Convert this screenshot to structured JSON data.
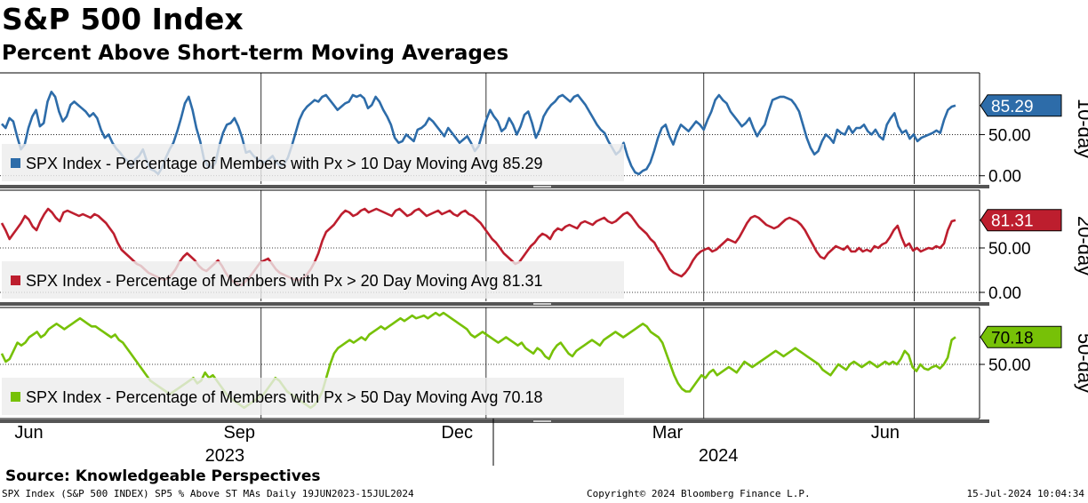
{
  "header": {
    "title": "S&P 500 Index",
    "subtitle": "Percent Above Short-term Moving Averages"
  },
  "source": "Source: Knowledgeable Perspectives",
  "footer": {
    "left": "SPX Index (S&P 500 INDEX) SP5 % Above ST MAs  Daily 19JUN2023-15JUL2024",
    "center": "Copyright© 2024 Bloomberg Finance L.P.",
    "right": "15-Jul-2024 10:04:34"
  },
  "chart_data": {
    "type": "line",
    "x_axis": {
      "months": [
        {
          "label": "Jun",
          "position": 0.3
        },
        {
          "label": "Sep",
          "position": 3.2
        },
        {
          "label": "Dec",
          "position": 6.2
        },
        {
          "label": "Mar",
          "position": 9.1
        },
        {
          "label": "Jun",
          "position": 12.1
        }
      ],
      "years": [
        {
          "label": "2023",
          "position": 3.0
        },
        {
          "label": "2024",
          "position": 9.8
        }
      ],
      "year_divider": 6.7,
      "month_gridlines": [
        3.5,
        6.6,
        9.6,
        12.5
      ],
      "range": [
        0,
        13.4
      ]
    },
    "panels": [
      {
        "name": "10-day",
        "side_label": "10-day",
        "color": "#2d6ca9",
        "last_value": "85.29",
        "legend": "SPX Index - Percentage of Members with Px > 10 Day Moving Avg 85.29",
        "ylim": [
          -10,
          125
        ],
        "yticks": [
          "50.00",
          "0.00"
        ],
        "ytick_values": [
          50,
          0
        ],
        "values": [
          63,
          58,
          70,
          66,
          48,
          32,
          38,
          58,
          72,
          80,
          60,
          64,
          90,
          102,
          96,
          78,
          66,
          72,
          86,
          90,
          86,
          82,
          78,
          72,
          76,
          70,
          56,
          46,
          50,
          40,
          33,
          28,
          22,
          18,
          12,
          20,
          24,
          32,
          18,
          8,
          6,
          2,
          10,
          22,
          32,
          40,
          54,
          70,
          88,
          96,
          80,
          58,
          42,
          20,
          12,
          10,
          16,
          36,
          52,
          62,
          64,
          70,
          60,
          46,
          28,
          30,
          24,
          20,
          18,
          16,
          20,
          24,
          16,
          12,
          14,
          22,
          36,
          52,
          68,
          78,
          84,
          88,
          92,
          90,
          96,
          98,
          92,
          86,
          80,
          84,
          88,
          90,
          98,
          96,
          98,
          94,
          82,
          86,
          96,
          90,
          80,
          72,
          62,
          46,
          40,
          42,
          50,
          46,
          42,
          56,
          58,
          62,
          70,
          66,
          60,
          54,
          48,
          58,
          52,
          46,
          40,
          44,
          48,
          40,
          30,
          36,
          52,
          68,
          80,
          72,
          66,
          54,
          58,
          70,
          62,
          50,
          60,
          74,
          78,
          64,
          46,
          56,
          72,
          80,
          86,
          90,
          96,
          98,
          94,
          90,
          96,
          98,
          92,
          86,
          78,
          70,
          62,
          56,
          52,
          42,
          34,
          26,
          30,
          40,
          24,
          12,
          4,
          2,
          6,
          8,
          16,
          30,
          46,
          58,
          62,
          48,
          38,
          52,
          62,
          58,
          54,
          60,
          66,
          62,
          56,
          68,
          78,
          92,
          98,
          92,
          88,
          78,
          72,
          66,
          60,
          64,
          70,
          58,
          48,
          56,
          62,
          78,
          92,
          94,
          96,
          96,
          94,
          92,
          86,
          78,
          62,
          46,
          34,
          26,
          30,
          42,
          50,
          46,
          40,
          56,
          52,
          50,
          60,
          52,
          58,
          58,
          62,
          54,
          50,
          56,
          48,
          44,
          62,
          70,
          76,
          60,
          52,
          55,
          45,
          50,
          42,
          46,
          48,
          50,
          52,
          55,
          52,
          68,
          80,
          84,
          85.29
        ]
      },
      {
        "name": "20-day",
        "side_label": "20-day",
        "color": "#bd1e2e",
        "last_value": "81.31",
        "legend": "SPX Index - Percentage of Members with Px > 20 Day Moving Avg 81.31",
        "ylim": [
          -10,
          115
        ],
        "yticks": [
          "50.00",
          "0.00"
        ],
        "ytick_values": [
          50,
          0
        ],
        "values": [
          78,
          70,
          60,
          66,
          72,
          78,
          86,
          82,
          74,
          70,
          80,
          88,
          94,
          90,
          84,
          80,
          90,
          92,
          90,
          88,
          86,
          88,
          86,
          84,
          88,
          86,
          82,
          78,
          72,
          66,
          56,
          48,
          44,
          40,
          36,
          32,
          30,
          26,
          22,
          20,
          18,
          16,
          14,
          16,
          20,
          26,
          34,
          40,
          44,
          40,
          36,
          30,
          26,
          24,
          28,
          32,
          36,
          30,
          22,
          16,
          12,
          10,
          8,
          12,
          16,
          22,
          28,
          34,
          36,
          38,
          32,
          26,
          22,
          20,
          18,
          16,
          14,
          14,
          16,
          20,
          26,
          34,
          44,
          58,
          68,
          72,
          76,
          82,
          88,
          92,
          90,
          86,
          88,
          92,
          94,
          90,
          92,
          94,
          92,
          90,
          88,
          86,
          92,
          94,
          90,
          86,
          88,
          92,
          94,
          90,
          86,
          88,
          90,
          92,
          88,
          90,
          92,
          88,
          86,
          90,
          92,
          88,
          86,
          82,
          78,
          72,
          66,
          60,
          56,
          50,
          44,
          40,
          36,
          32,
          34,
          40,
          46,
          52,
          56,
          62,
          66,
          64,
          60,
          68,
          72,
          70,
          74,
          76,
          74,
          72,
          78,
          80,
          78,
          76,
          80,
          82,
          84,
          80,
          78,
          80,
          84,
          88,
          90,
          86,
          80,
          74,
          70,
          66,
          60,
          56,
          48,
          42,
          34,
          26,
          22,
          20,
          18,
          22,
          28,
          36,
          42,
          46,
          48,
          50,
          46,
          48,
          52,
          56,
          60,
          58,
          56,
          62,
          70,
          78,
          84,
          86,
          84,
          80,
          76,
          74,
          72,
          74,
          78,
          82,
          84,
          82,
          80,
          76,
          70,
          62,
          54,
          46,
          40,
          38,
          44,
          48,
          52,
          50,
          48,
          52,
          46,
          46,
          50,
          46,
          48,
          46,
          52,
          50,
          54,
          56,
          62,
          70,
          75,
          62,
          52,
          55,
          47,
          50,
          46,
          48,
          50,
          49,
          52,
          50,
          55,
          70,
          80,
          81.31
        ]
      },
      {
        "name": "50-day",
        "side_label": "50-day",
        "color": "#77c107",
        "last_value": "70.18",
        "legend": "SPX Index - Percentage of Members with Px > 50 Day Moving Avg 70.18",
        "ylim": [
          10,
          92
        ],
        "yticks": [
          "50.00"
        ],
        "ytick_values": [
          50
        ],
        "values": [
          58,
          52,
          54,
          60,
          66,
          64,
          66,
          70,
          72,
          74,
          70,
          72,
          76,
          78,
          80,
          78,
          76,
          78,
          80,
          82,
          84,
          82,
          80,
          78,
          78,
          76,
          74,
          72,
          70,
          72,
          68,
          66,
          62,
          58,
          54,
          50,
          46,
          42,
          38,
          36,
          34,
          32,
          30,
          28,
          30,
          32,
          34,
          36,
          38,
          40,
          36,
          38,
          44,
          40,
          42,
          38,
          34,
          30,
          26,
          24,
          22,
          20,
          18,
          20,
          22,
          24,
          26,
          28,
          32,
          36,
          40,
          38,
          34,
          30,
          28,
          26,
          24,
          22,
          20,
          18,
          20,
          24,
          30,
          40,
          50,
          58,
          62,
          64,
          66,
          68,
          66,
          68,
          70,
          68,
          72,
          74,
          76,
          78,
          76,
          78,
          80,
          82,
          84,
          82,
          84,
          86,
          84,
          85,
          86,
          84,
          86,
          88,
          86,
          88,
          86,
          84,
          82,
          80,
          78,
          76,
          72,
          70,
          72,
          74,
          72,
          70,
          68,
          66,
          68,
          70,
          68,
          66,
          64,
          66,
          62,
          60,
          58,
          62,
          60,
          56,
          54,
          60,
          64,
          66,
          62,
          58,
          56,
          60,
          62,
          64,
          66,
          68,
          66,
          64,
          68,
          70,
          72,
          74,
          72,
          70,
          72,
          74,
          76,
          78,
          80,
          78,
          74,
          72,
          70,
          66,
          58,
          50,
          42,
          36,
          32,
          30,
          30,
          34,
          38,
          42,
          40,
          44,
          46,
          42,
          44,
          46,
          48,
          46,
          44,
          48,
          52,
          50,
          48,
          50,
          52,
          54,
          56,
          58,
          60,
          58,
          56,
          58,
          60,
          62,
          60,
          58,
          56,
          54,
          52,
          50,
          46,
          44,
          42,
          46,
          50,
          48,
          46,
          50,
          52,
          50,
          48,
          50,
          52,
          50,
          48,
          50,
          52,
          50,
          52,
          50,
          54,
          60,
          57,
          48,
          45,
          50,
          47,
          46,
          48,
          49,
          47,
          50,
          55,
          68,
          70.18
        ]
      }
    ]
  }
}
